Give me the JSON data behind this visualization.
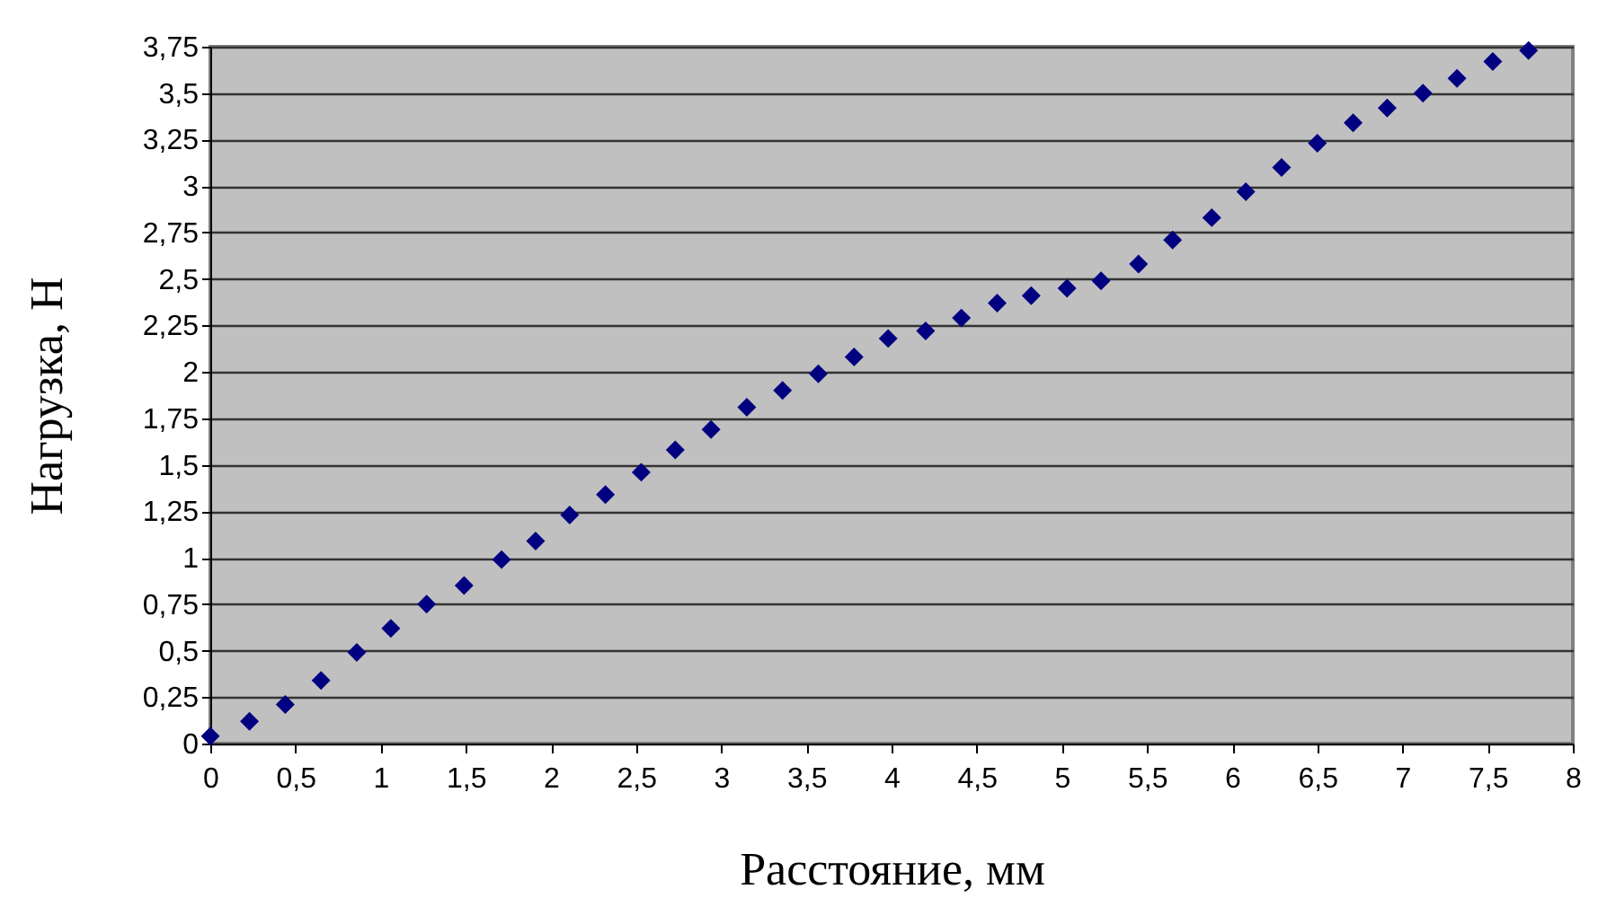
{
  "chart_data": {
    "type": "scatter",
    "xlabel": "Расстояние, мм",
    "ylabel": "Нагрузка, Н",
    "marker": "diamond",
    "grid": "y",
    "x": [
      0,
      0.23,
      0.44,
      0.65,
      0.86,
      1.06,
      1.27,
      1.49,
      1.71,
      1.91,
      2.11,
      2.32,
      2.53,
      2.73,
      2.94,
      3.15,
      3.36,
      3.57,
      3.78,
      3.98,
      4.2,
      4.41,
      4.62,
      4.82,
      5.03,
      5.23,
      5.45,
      5.65,
      5.88,
      6.08,
      6.29,
      6.5,
      6.71,
      6.91,
      7.12,
      7.32,
      7.53,
      7.74
    ],
    "series": [
      {
        "color": "#000080",
        "values": [
          0.04,
          0.12,
          0.21,
          0.34,
          0.49,
          0.62,
          0.75,
          0.85,
          0.99,
          1.09,
          1.23,
          1.34,
          1.46,
          1.58,
          1.69,
          1.81,
          1.9,
          1.99,
          2.08,
          2.18,
          2.22,
          2.29,
          2.37,
          2.41,
          2.45,
          2.49,
          2.58,
          2.71,
          2.83,
          2.97,
          3.1,
          3.23,
          3.34,
          3.42,
          3.5,
          3.58,
          3.67,
          3.73
        ]
      }
    ],
    "xlim": [
      0,
      8
    ],
    "xticks": [
      0,
      {
        "value": 0.5,
        "label": "0,5"
      },
      1,
      {
        "value": 1.5,
        "label": "1,5"
      },
      2,
      {
        "value": 2.5,
        "label": "2,5"
      },
      3,
      {
        "value": 3.5,
        "label": "3,5"
      },
      4,
      {
        "value": 4.5,
        "label": "4,5"
      },
      5,
      {
        "value": 5.5,
        "label": "5,5"
      },
      6,
      {
        "value": 6.5,
        "label": "6,5"
      },
      7,
      {
        "value": 7.5,
        "label": "7,5"
      },
      8
    ],
    "ylim": [
      0,
      3.75
    ],
    "yticks": [
      0,
      {
        "value": 0.25,
        "label": "0,25"
      },
      {
        "value": 0.5,
        "label": "0,5"
      },
      {
        "value": 0.75,
        "label": "0,75"
      },
      1,
      {
        "value": 1.25,
        "label": "1,25"
      },
      {
        "value": 1.5,
        "label": "1,5"
      },
      {
        "value": 1.75,
        "label": "1,75"
      },
      2,
      {
        "value": 2.25,
        "label": "2,25"
      },
      {
        "value": 2.5,
        "label": "2,5"
      },
      {
        "value": 2.75,
        "label": "2,75"
      },
      3,
      {
        "value": 3.25,
        "label": "3,25"
      },
      {
        "value": 3.5,
        "label": "3,5"
      },
      {
        "value": 3.75,
        "label": "3,75"
      }
    ]
  }
}
